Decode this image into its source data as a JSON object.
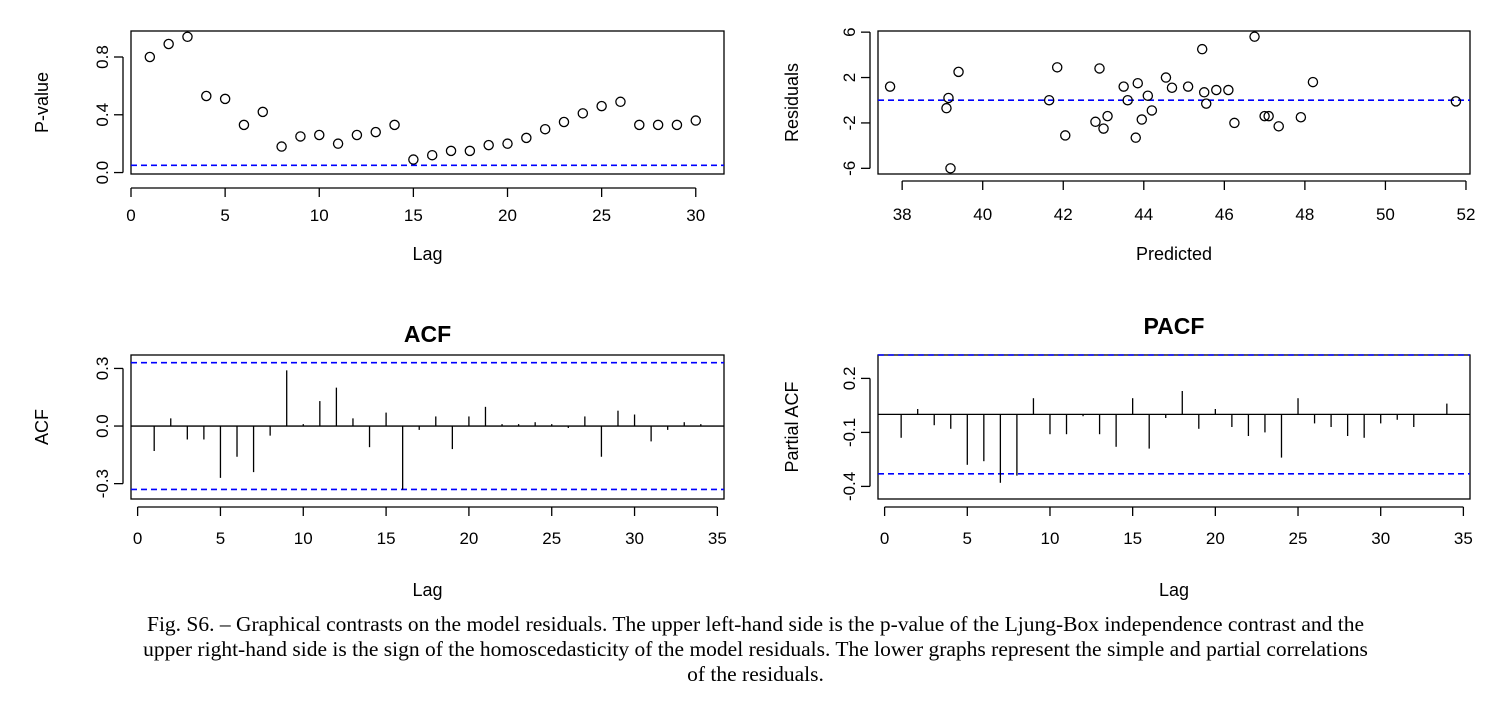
{
  "chart_data": [
    {
      "id": "ljung_box",
      "type": "scatter",
      "title": "",
      "xlabel": "Lag",
      "ylabel": "P-value",
      "xlim": [
        0,
        31.5
      ],
      "ylim": [
        -0.01,
        0.98
      ],
      "xticks": [
        0,
        5,
        10,
        15,
        20,
        25,
        30
      ],
      "yticks": [
        0.0,
        0.4,
        0.8
      ],
      "ytick_labels": [
        "0.0",
        "0.4",
        "0.8"
      ],
      "reference_line": 0.05,
      "x": [
        1,
        2,
        3,
        4,
        5,
        6,
        7,
        8,
        9,
        10,
        11,
        12,
        13,
        14,
        15,
        16,
        17,
        18,
        19,
        20,
        21,
        22,
        23,
        24,
        25,
        26,
        27,
        28,
        29,
        30
      ],
      "y": [
        0.8,
        0.89,
        0.94,
        0.53,
        0.51,
        0.33,
        0.42,
        0.18,
        0.25,
        0.26,
        0.2,
        0.26,
        0.28,
        0.33,
        0.09,
        0.12,
        0.15,
        0.15,
        0.19,
        0.2,
        0.24,
        0.3,
        0.35,
        0.41,
        0.46,
        0.49,
        0.33,
        0.33,
        0.33,
        0.36
      ]
    },
    {
      "id": "residuals_vs_predicted",
      "type": "scatter",
      "title": "",
      "xlabel": "Predicted",
      "ylabel": "Residuals",
      "xlim": [
        37.4,
        52.1
      ],
      "ylim": [
        -6.5,
        6.1
      ],
      "xticks": [
        38,
        40,
        42,
        44,
        46,
        48,
        50,
        52
      ],
      "yticks": [
        -6,
        -2,
        2,
        6
      ],
      "reference_line": 0,
      "x": [
        37.7,
        39.1,
        39.15,
        39.2,
        39.4,
        41.65,
        41.85,
        42.05,
        42.8,
        42.9,
        43.0,
        43.1,
        43.5,
        43.6,
        43.8,
        43.85,
        43.95,
        44.1,
        44.2,
        44.55,
        44.7,
        45.1,
        45.45,
        45.5,
        45.55,
        45.8,
        46.1,
        46.25,
        46.75,
        47.0,
        47.1,
        47.35,
        47.9,
        48.2,
        51.75
      ],
      "y": [
        1.2,
        -0.7,
        0.2,
        -6.0,
        2.5,
        0.0,
        2.9,
        -3.1,
        -1.9,
        2.8,
        -2.5,
        -1.4,
        1.2,
        0.0,
        -3.3,
        1.5,
        -1.7,
        0.4,
        -0.9,
        2.0,
        1.1,
        1.2,
        4.5,
        0.7,
        -0.3,
        0.9,
        0.9,
        -2.0,
        5.6,
        -1.4,
        -1.4,
        -2.3,
        -1.5,
        1.6,
        -0.1
      ]
    },
    {
      "id": "acf",
      "type": "bar",
      "title": "ACF",
      "xlabel": "Lag",
      "ylabel": "ACF",
      "xlim": [
        -0.4,
        35.4
      ],
      "ylim": [
        -0.38,
        0.37
      ],
      "xticks": [
        0,
        5,
        10,
        15,
        20,
        25,
        30,
        35
      ],
      "yticks": [
        -0.3,
        0.0,
        0.3
      ],
      "ytick_labels": [
        "-0.3",
        "0.0",
        "0.3"
      ],
      "confidence_band": [
        -0.33,
        0.33
      ],
      "x": [
        1,
        2,
        3,
        4,
        5,
        6,
        7,
        8,
        9,
        10,
        11,
        12,
        13,
        14,
        15,
        16,
        17,
        18,
        19,
        20,
        21,
        22,
        23,
        24,
        25,
        26,
        27,
        28,
        29,
        30,
        31,
        32,
        33,
        34
      ],
      "values": [
        -0.13,
        0.04,
        -0.07,
        -0.07,
        -0.27,
        -0.16,
        -0.24,
        -0.05,
        0.29,
        0.01,
        0.13,
        0.2,
        0.04,
        -0.11,
        0.07,
        -0.33,
        -0.02,
        0.05,
        -0.12,
        0.05,
        0.1,
        0.01,
        0.01,
        0.02,
        0.01,
        -0.01,
        0.05,
        -0.16,
        0.08,
        0.06,
        -0.08,
        -0.02,
        0.02,
        0.01
      ]
    },
    {
      "id": "pacf",
      "type": "bar",
      "title": "PACF",
      "xlabel": "Lag",
      "ylabel": "Partial ACF",
      "xlim": [
        -0.4,
        35.4
      ],
      "ylim": [
        -0.47,
        0.33
      ],
      "xticks": [
        0,
        5,
        10,
        15,
        20,
        25,
        30,
        35
      ],
      "yticks": [
        -0.4,
        -0.1,
        0.2
      ],
      "ytick_labels": [
        "-0.4",
        "-0.1",
        "0.2"
      ],
      "confidence_band": [
        -0.33,
        0.33
      ],
      "x": [
        1,
        2,
        3,
        4,
        5,
        6,
        7,
        8,
        9,
        10,
        11,
        12,
        13,
        14,
        15,
        16,
        17,
        18,
        19,
        20,
        21,
        22,
        23,
        24,
        25,
        26,
        27,
        28,
        29,
        30,
        31,
        32,
        33,
        34
      ],
      "values": [
        -0.13,
        0.03,
        -0.06,
        -0.08,
        -0.28,
        -0.26,
        -0.38,
        -0.34,
        0.09,
        -0.11,
        -0.11,
        -0.01,
        -0.11,
        -0.18,
        0.09,
        -0.19,
        -0.02,
        0.13,
        -0.08,
        0.03,
        -0.07,
        -0.12,
        -0.1,
        -0.24,
        0.09,
        -0.05,
        -0.07,
        -0.12,
        -0.13,
        -0.05,
        -0.03,
        -0.07,
        0.0,
        0.06
      ]
    }
  ],
  "caption": {
    "lines": [
      "Fig. S6. – Graphical contrasts on the model residuals. The upper left-hand side is the p-value of the Ljung-Box independence contrast and the",
      "upper right-hand side is the sign of the homoscedasticity of the model residuals. The lower graphs represent the simple and partial correlations",
      "of the residuals."
    ]
  },
  "colors": {
    "reference_line": "#0000ff",
    "ink": "#000000",
    "background": "#ffffff"
  }
}
